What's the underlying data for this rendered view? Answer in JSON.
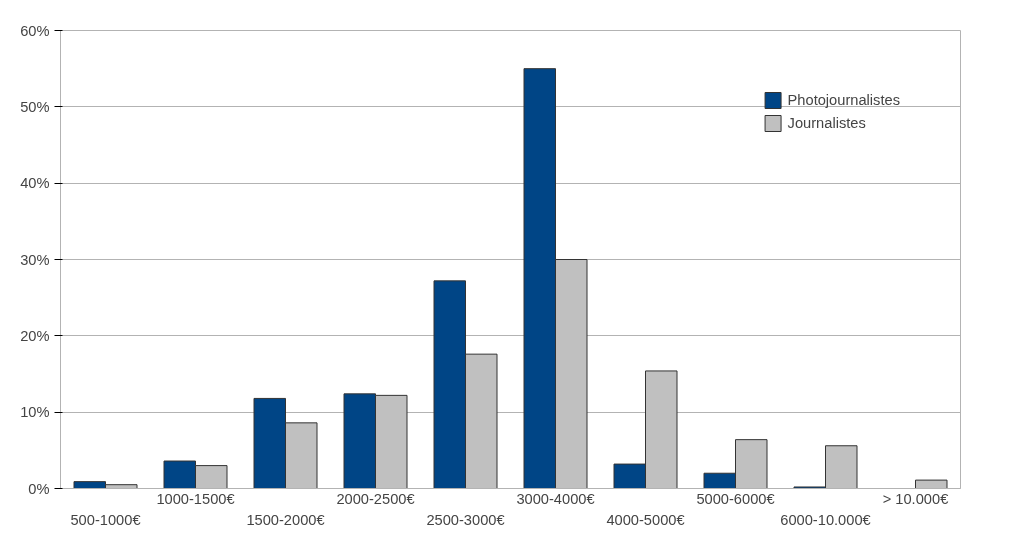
{
  "chart_data": {
    "type": "bar",
    "categories": [
      "500-1000€",
      "1000-1500€",
      "1500-2000€",
      "2000-2500€",
      "2500-3000€",
      "3000-4000€",
      "4000-5000€",
      "5000-6000€",
      "6000-10.000€",
      "> 10.000€"
    ],
    "series": [
      {
        "name": "Photojournalistes",
        "color": "#004586",
        "values": [
          0.9,
          3.6,
          11.8,
          12.4,
          27.2,
          55,
          3.2,
          2.0,
          0.2,
          null
        ]
      },
      {
        "name": "Journalistes",
        "color": "#c0c0c0",
        "values": [
          0.5,
          3.0,
          8.6,
          12.2,
          17.6,
          30,
          15.4,
          6.4,
          5.6,
          1.1
        ]
      }
    ],
    "ylim": [
      0,
      60
    ],
    "yticks": [
      {
        "value": 0,
        "label": "0%"
      },
      {
        "value": 10,
        "label": "10%"
      },
      {
        "value": 20,
        "label": "20%"
      },
      {
        "value": 30,
        "label": "30%"
      },
      {
        "value": 40,
        "label": "40%"
      },
      {
        "value": 50,
        "label": "50%"
      },
      {
        "value": 60,
        "label": "60%"
      }
    ],
    "grid": "y",
    "legend": "top right"
  }
}
